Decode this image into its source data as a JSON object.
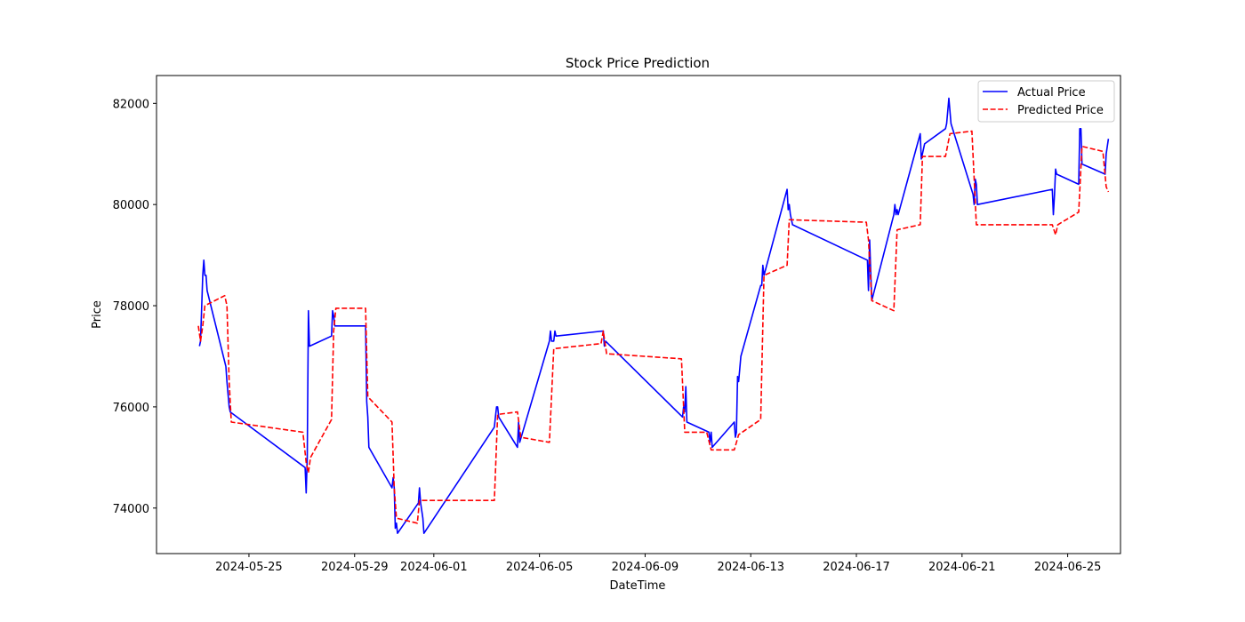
{
  "chart_data": {
    "type": "line",
    "title": "Stock Price Prediction",
    "xlabel": "DateTime",
    "ylabel": "Price",
    "xlim": [
      "2024-05-21T12:00",
      "2024-06-27T00:00"
    ],
    "ylim": [
      73100,
      82550
    ],
    "grid": false,
    "legend_position": "top-right",
    "x_ticks": [
      "2024-05-25",
      "2024-05-29",
      "2024-06-01",
      "2024-06-05",
      "2024-06-09",
      "2024-06-13",
      "2024-06-17",
      "2024-06-21",
      "2024-06-25"
    ],
    "y_ticks": [
      74000,
      76000,
      78000,
      80000,
      82000
    ],
    "colors": {
      "actual": "#0000ff",
      "predicted": "#ff0000"
    },
    "series": [
      {
        "name": "Actual Price",
        "style": "solid",
        "points": [
          [
            "2024-05-23T03:00",
            77200
          ],
          [
            "2024-05-23T04:00",
            77300
          ],
          [
            "2024-05-23T06:00",
            78600
          ],
          [
            "2024-05-23T07:00",
            78900
          ],
          [
            "2024-05-23T08:00",
            78600
          ],
          [
            "2024-05-23T09:00",
            78600
          ],
          [
            "2024-05-23T10:00",
            78300
          ],
          [
            "2024-05-24T03:00",
            76800
          ],
          [
            "2024-05-24T04:00",
            76500
          ],
          [
            "2024-05-24T06:00",
            76000
          ],
          [
            "2024-05-24T07:00",
            75900
          ],
          [
            "2024-05-27T03:00",
            74800
          ],
          [
            "2024-05-27T04:00",
            74300
          ],
          [
            "2024-05-27T05:00",
            75000
          ],
          [
            "2024-05-27T06:00",
            77900
          ],
          [
            "2024-05-27T07:00",
            77200
          ],
          [
            "2024-05-28T03:00",
            77400
          ],
          [
            "2024-05-28T04:00",
            77900
          ],
          [
            "2024-05-28T05:00",
            77800
          ],
          [
            "2024-05-28T06:00",
            77600
          ],
          [
            "2024-05-29T10:00",
            77600
          ],
          [
            "2024-05-29T11:00",
            76100
          ],
          [
            "2024-05-29T12:00",
            75800
          ],
          [
            "2024-05-29T13:00",
            75200
          ],
          [
            "2024-05-30T10:00",
            74400
          ],
          [
            "2024-05-30T11:00",
            74600
          ],
          [
            "2024-05-30T12:00",
            74400
          ],
          [
            "2024-05-30T13:00",
            73600
          ],
          [
            "2024-05-30T14:00",
            73700
          ],
          [
            "2024-05-30T15:00",
            73500
          ],
          [
            "2024-05-31T10:00",
            74100
          ],
          [
            "2024-05-31T11:00",
            74400
          ],
          [
            "2024-05-31T12:00",
            74100
          ],
          [
            "2024-05-31T14:00",
            73800
          ],
          [
            "2024-05-31T15:00",
            73500
          ],
          [
            "2024-06-03T07:00",
            75600
          ],
          [
            "2024-06-03T08:00",
            75800
          ],
          [
            "2024-06-03T09:00",
            76000
          ],
          [
            "2024-06-03T10:00",
            76000
          ],
          [
            "2024-06-03T11:00",
            75800
          ],
          [
            "2024-06-04T04:00",
            75200
          ],
          [
            "2024-06-04T05:00",
            75700
          ],
          [
            "2024-06-04T06:00",
            75300
          ],
          [
            "2024-06-05T09:00",
            77300
          ],
          [
            "2024-06-05T10:00",
            77500
          ],
          [
            "2024-06-05T11:00",
            77300
          ],
          [
            "2024-06-05T13:00",
            77300
          ],
          [
            "2024-06-05T14:00",
            77500
          ],
          [
            "2024-06-05T15:00",
            77400
          ],
          [
            "2024-06-07T10:00",
            77500
          ],
          [
            "2024-06-07T11:00",
            77200
          ],
          [
            "2024-06-07T12:00",
            77300
          ],
          [
            "2024-06-10T10:00",
            75800
          ],
          [
            "2024-06-10T11:00",
            76000
          ],
          [
            "2024-06-10T12:00",
            75900
          ],
          [
            "2024-06-10T13:00",
            76400
          ],
          [
            "2024-06-10T14:00",
            75700
          ],
          [
            "2024-06-11T10:00",
            75500
          ],
          [
            "2024-06-11T11:00",
            75300
          ],
          [
            "2024-06-11T12:00",
            75500
          ],
          [
            "2024-06-11T13:00",
            75200
          ],
          [
            "2024-06-12T09:00",
            75700
          ],
          [
            "2024-06-12T10:00",
            75400
          ],
          [
            "2024-06-12T11:00",
            75500
          ],
          [
            "2024-06-12T12:00",
            76600
          ],
          [
            "2024-06-12T13:00",
            76500
          ],
          [
            "2024-06-12T15:00",
            77000
          ],
          [
            "2024-06-13T09:00",
            78400
          ],
          [
            "2024-06-13T10:00",
            78400
          ],
          [
            "2024-06-13T11:00",
            78800
          ],
          [
            "2024-06-13T12:00",
            78600
          ],
          [
            "2024-06-14T09:00",
            80300
          ],
          [
            "2024-06-14T10:00",
            79900
          ],
          [
            "2024-06-14T11:00",
            80000
          ],
          [
            "2024-06-14T12:00",
            79800
          ],
          [
            "2024-06-14T14:00",
            79600
          ],
          [
            "2024-06-17T10:00",
            78900
          ],
          [
            "2024-06-17T11:00",
            78300
          ],
          [
            "2024-06-17T12:00",
            79300
          ],
          [
            "2024-06-17T14:00",
            78100
          ],
          [
            "2024-06-18T10:00",
            79800
          ],
          [
            "2024-06-18T11:00",
            80000
          ],
          [
            "2024-06-18T12:00",
            79800
          ],
          [
            "2024-06-18T13:00",
            79900
          ],
          [
            "2024-06-18T14:00",
            79800
          ],
          [
            "2024-06-19T10:00",
            81400
          ],
          [
            "2024-06-19T11:00",
            80900
          ],
          [
            "2024-06-19T12:00",
            81000
          ],
          [
            "2024-06-19T14:00",
            81200
          ],
          [
            "2024-06-20T09:00",
            81500
          ],
          [
            "2024-06-20T10:00",
            81600
          ],
          [
            "2024-06-20T12:00",
            82100
          ],
          [
            "2024-06-20T14:00",
            81600
          ],
          [
            "2024-06-21T10:00",
            80200
          ],
          [
            "2024-06-21T11:00",
            80000
          ],
          [
            "2024-06-21T12:00",
            80500
          ],
          [
            "2024-06-21T13:00",
            80400
          ],
          [
            "2024-06-21T14:00",
            80000
          ],
          [
            "2024-06-24T10:00",
            80300
          ],
          [
            "2024-06-24T11:00",
            79800
          ],
          [
            "2024-06-24T12:00",
            80200
          ],
          [
            "2024-06-24T13:00",
            80700
          ],
          [
            "2024-06-24T14:00",
            80600
          ],
          [
            "2024-06-25T10:00",
            80400
          ],
          [
            "2024-06-25T11:00",
            81500
          ],
          [
            "2024-06-25T12:00",
            81500
          ],
          [
            "2024-06-25T13:00",
            80800
          ],
          [
            "2024-06-26T10:00",
            80600
          ],
          [
            "2024-06-26T11:00",
            81000
          ],
          [
            "2024-06-26T13:00",
            81300
          ]
        ]
      },
      {
        "name": "Predicted Price",
        "style": "dashed",
        "points": [
          [
            "2024-05-23T02:00",
            77600
          ],
          [
            "2024-05-23T04:00",
            77300
          ],
          [
            "2024-05-23T06:00",
            77600
          ],
          [
            "2024-05-23T08:00",
            78000
          ],
          [
            "2024-05-24T02:00",
            78200
          ],
          [
            "2024-05-24T04:00",
            78000
          ],
          [
            "2024-05-24T06:00",
            76500
          ],
          [
            "2024-05-24T08:00",
            75700
          ],
          [
            "2024-05-27T01:00",
            75500
          ],
          [
            "2024-05-27T04:00",
            74900
          ],
          [
            "2024-05-27T06:00",
            74700
          ],
          [
            "2024-05-27T08:00",
            75000
          ],
          [
            "2024-05-28T03:00",
            75750
          ],
          [
            "2024-05-28T05:00",
            77500
          ],
          [
            "2024-05-28T07:00",
            77950
          ],
          [
            "2024-05-29T10:00",
            77950
          ],
          [
            "2024-05-29T12:00",
            76200
          ],
          [
            "2024-05-30T10:00",
            75700
          ],
          [
            "2024-05-30T12:00",
            74400
          ],
          [
            "2024-05-30T14:00",
            73800
          ],
          [
            "2024-05-31T09:00",
            73700
          ],
          [
            "2024-05-31T11:00",
            74150
          ],
          [
            "2024-06-03T07:00",
            74150
          ],
          [
            "2024-06-03T10:00",
            75850
          ],
          [
            "2024-06-04T04:00",
            75900
          ],
          [
            "2024-06-04T07:00",
            75400
          ],
          [
            "2024-06-05T09:00",
            75300
          ],
          [
            "2024-06-05T13:00",
            77150
          ],
          [
            "2024-06-07T08:00",
            77250
          ],
          [
            "2024-06-07T10:00",
            77500
          ],
          [
            "2024-06-07T13:00",
            77050
          ],
          [
            "2024-06-10T09:00",
            76950
          ],
          [
            "2024-06-10T12:00",
            75500
          ],
          [
            "2024-06-11T08:00",
            75500
          ],
          [
            "2024-06-11T12:00",
            75150
          ],
          [
            "2024-06-12T09:00",
            75150
          ],
          [
            "2024-06-12T13:00",
            75450
          ],
          [
            "2024-06-13T09:00",
            75750
          ],
          [
            "2024-06-13T12:00",
            78600
          ],
          [
            "2024-06-14T09:00",
            78800
          ],
          [
            "2024-06-14T11:00",
            79700
          ],
          [
            "2024-06-17T09:00",
            79650
          ],
          [
            "2024-06-17T11:00",
            79300
          ],
          [
            "2024-06-17T14:00",
            78100
          ],
          [
            "2024-06-18T10:00",
            77900
          ],
          [
            "2024-06-18T13:00",
            79500
          ],
          [
            "2024-06-19T10:00",
            79600
          ],
          [
            "2024-06-19T12:00",
            80950
          ],
          [
            "2024-06-20T09:00",
            80950
          ],
          [
            "2024-06-20T13:00",
            81400
          ],
          [
            "2024-06-21T09:00",
            81450
          ],
          [
            "2024-06-21T13:00",
            79600
          ],
          [
            "2024-06-24T10:00",
            79600
          ],
          [
            "2024-06-24T13:00",
            79400
          ],
          [
            "2024-06-24T15:00",
            79600
          ],
          [
            "2024-06-25T10:00",
            79850
          ],
          [
            "2024-06-25T13:00",
            81150
          ],
          [
            "2024-06-26T08:00",
            81050
          ],
          [
            "2024-06-26T11:00",
            80350
          ],
          [
            "2024-06-26T13:00",
            80250
          ]
        ]
      }
    ]
  }
}
